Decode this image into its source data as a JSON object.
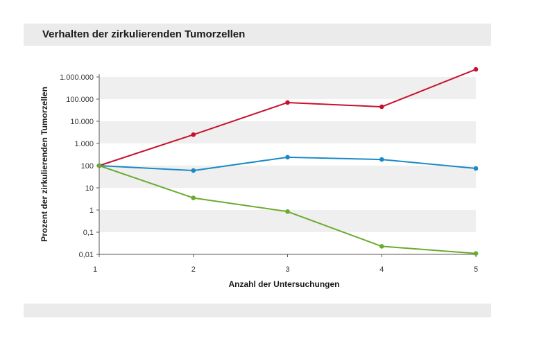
{
  "title": "Verhalten der zirkulierenden Tumorzellen",
  "chart_data": {
    "type": "line",
    "y_scale": "log",
    "x": [
      1,
      2,
      3,
      4,
      5
    ],
    "x_ticks": [
      "1",
      "2",
      "3",
      "4",
      "5"
    ],
    "xlabel": "Anzahl der Untersuchungen",
    "ylabel": "Prozent der zirkulierenden Tumorzellen",
    "ylim": [
      0.01,
      1000000
    ],
    "y_tick_values": [
      0.01,
      0.1,
      1,
      10,
      100,
      1000,
      10000,
      100000,
      1000000
    ],
    "y_tick_labels": [
      "0,01",
      "0,1",
      "1",
      "10",
      "100",
      "1.000",
      "10.000",
      "100.000",
      "1.000.000"
    ],
    "grid": "alternating horizontal bands",
    "legend": "none",
    "series": [
      {
        "color": "#c8102e",
        "values": [
          100,
          2500,
          70000,
          45000,
          2200000
        ]
      },
      {
        "color": "#1a8ac6",
        "values": [
          100,
          60,
          240,
          190,
          75
        ]
      },
      {
        "color": "#6aab2e",
        "values": [
          100,
          3.5,
          0.85,
          0.023,
          0.011
        ]
      }
    ]
  }
}
